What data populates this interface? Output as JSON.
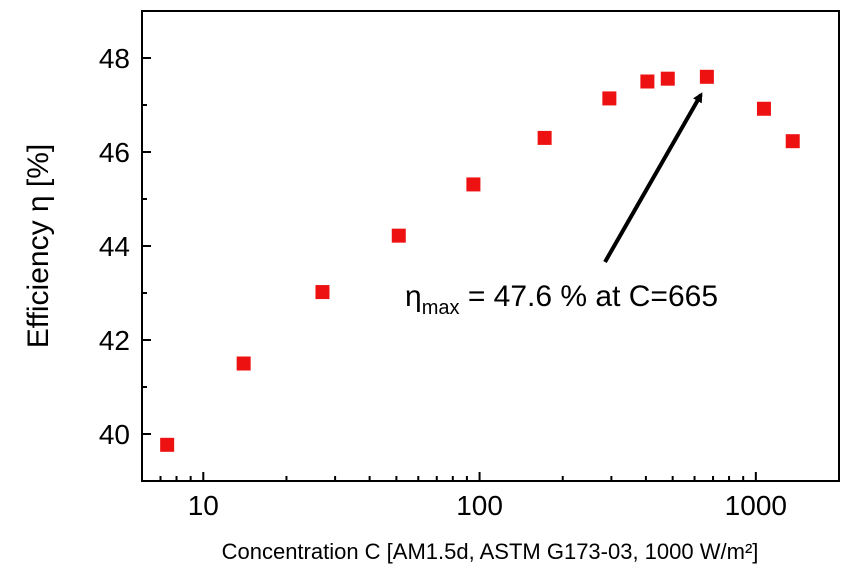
{
  "chart_data": {
    "type": "scatter",
    "xlabel": "Concentration C [AM1.5d, ASTM G173-03, 1000 W/m²]",
    "ylabel": "Efficiency η [%]",
    "xscale": "log",
    "xlim": [
      6,
      2000
    ],
    "ylim": [
      39,
      49
    ],
    "x_ticks": [
      10,
      100,
      1000
    ],
    "x_tick_labels": [
      "10",
      "100",
      "1000"
    ],
    "y_ticks": [
      40,
      42,
      44,
      46,
      48
    ],
    "y_tick_labels": [
      "40",
      "42",
      "44",
      "46",
      "48"
    ],
    "grid": false,
    "marker": "square",
    "marker_color": "#ee1111",
    "series": [
      {
        "x": [
          7.4,
          14,
          27,
          51,
          95,
          172,
          295,
          405,
          480,
          665,
          1070,
          1360
        ],
        "y": [
          39.77,
          41.5,
          43.02,
          44.22,
          45.31,
          46.3,
          47.14,
          47.5,
          47.56,
          47.6,
          46.92,
          46.23
        ]
      }
    ],
    "annotation": {
      "text_symbol": "η",
      "text_subscript": "max",
      "text_rest": " = 47.6 % at C=665",
      "target_x": 665,
      "target_y": 47.6
    }
  }
}
